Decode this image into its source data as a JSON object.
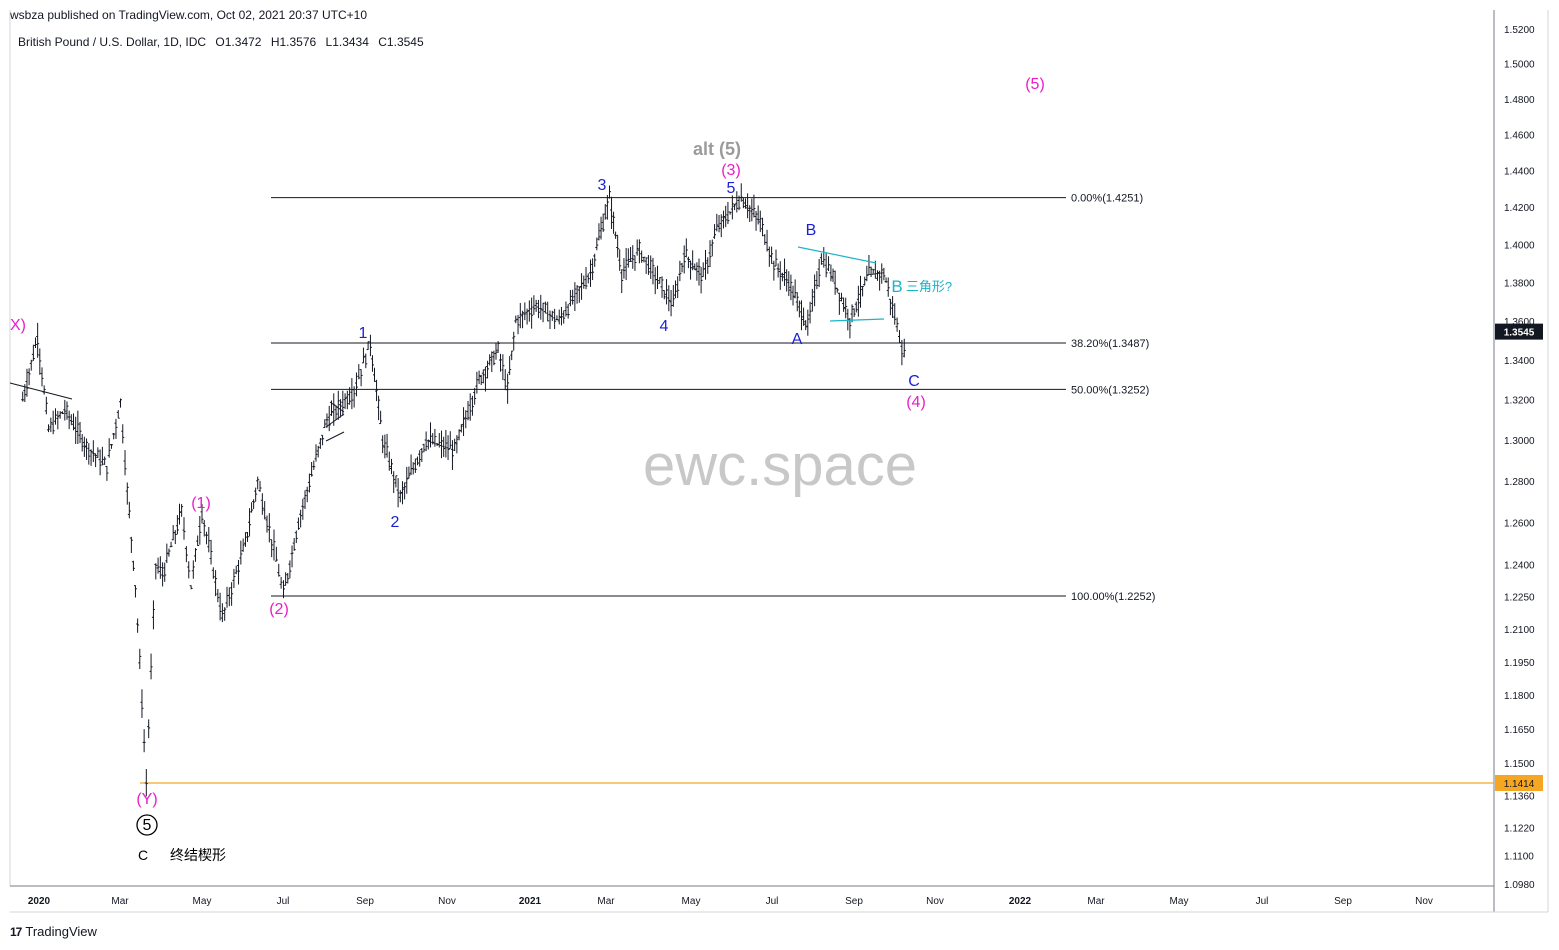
{
  "header": {
    "published": "wsbza published on TradingView.com, Oct 02, 2021 20:37 UTC+10",
    "symbol": "British Pound / U.S. Dollar, 1D, IDC",
    "open": "O1.3472",
    "high": "H1.3576",
    "low": "L1.3434",
    "close": "C1.3545"
  },
  "footer": {
    "brand": "TradingView",
    "logo_text": "17"
  },
  "watermark": "ewc.space",
  "chart_data": {
    "type": "ohlc",
    "title": "British Pound / U.S. Dollar, 1D, IDC",
    "y_axis": {
      "ticks": [
        "1.5200",
        "1.5000",
        "1.4800",
        "1.4600",
        "1.4400",
        "1.4200",
        "1.4000",
        "1.3800",
        "1.3600",
        "1.3400",
        "1.3200",
        "1.3000",
        "1.2800",
        "1.2600",
        "1.2400",
        "1.2250",
        "1.2100",
        "1.1950",
        "1.1800",
        "1.1650",
        "1.1500",
        "1.1360",
        "1.1220",
        "1.1100",
        "1.0980"
      ],
      "ylim": [
        1.098,
        1.52
      ],
      "scale": "log"
    },
    "x_axis": {
      "ticks": [
        "2020",
        "Mar",
        "May",
        "Jul",
        "Sep",
        "Nov",
        "2021",
        "Mar",
        "May",
        "Jul",
        "Sep",
        "Nov",
        "2022",
        "Mar",
        "May",
        "Jul",
        "Sep",
        "Nov"
      ],
      "bold_ticks": [
        "2020",
        "2021",
        "2022"
      ]
    },
    "price_badge": {
      "value": "1.3545",
      "color": "#131722"
    },
    "level_badge": {
      "value": "1.1414",
      "color": "#f5a623"
    },
    "fib_levels": [
      {
        "label": "0.00%(1.4251)",
        "value": 1.4251
      },
      {
        "label": "38.20%(1.3487)",
        "value": 1.3487
      },
      {
        "label": "50.00%(1.3252)",
        "value": 1.3252
      },
      {
        "label": "100.00%(1.2252)",
        "value": 1.2252
      }
    ],
    "horizontal_line": {
      "value": 1.1414,
      "color": "#f5a623"
    },
    "wave_labels": [
      {
        "text": "X)",
        "color": "#e91ec9"
      },
      {
        "text": "(1)",
        "color": "#e91ec9"
      },
      {
        "text": "(2)",
        "color": "#e91ec9"
      },
      {
        "text": "(Y)",
        "color": "#e91ec9"
      },
      {
        "text": "5",
        "color": "#000000",
        "circled": true
      },
      {
        "text": "C",
        "color": "#000000"
      },
      {
        "text": "终结楔形",
        "color": "#000000"
      },
      {
        "text": "1",
        "color": "#1a1fd6"
      },
      {
        "text": "2",
        "color": "#1a1fd6"
      },
      {
        "text": "3",
        "color": "#1a1fd6"
      },
      {
        "text": "4",
        "color": "#1a1fd6"
      },
      {
        "text": "5",
        "color": "#1a1fd6"
      },
      {
        "text": "alt (5)",
        "color": "#9b9b9b"
      },
      {
        "text": "(3)",
        "color": "#e91ec9"
      },
      {
        "text": "B",
        "color": "#1a1fd6"
      },
      {
        "text": "A",
        "color": "#1a1fd6"
      },
      {
        "text": "B",
        "color": "#1ab5c7"
      },
      {
        "text": "三角形?",
        "color": "#1ab5c7"
      },
      {
        "text": "C",
        "color": "#1a1fd6"
      },
      {
        "text": "(4)",
        "color": "#e91ec9"
      },
      {
        "text": "(5)",
        "color": "#e91ec9"
      }
    ],
    "path_anchors": [
      {
        "date": "2019-12-20",
        "price": 1.32
      },
      {
        "date": "2019-12-31",
        "price": 1.352
      },
      {
        "date": "2020-01-08",
        "price": 1.305
      },
      {
        "date": "2020-01-20",
        "price": 1.315
      },
      {
        "date": "2020-02-05",
        "price": 1.297
      },
      {
        "date": "2020-02-20",
        "price": 1.287
      },
      {
        "date": "2020-03-01",
        "price": 1.319
      },
      {
        "date": "2020-03-06",
        "price": 1.275
      },
      {
        "date": "2020-03-12",
        "price": 1.23
      },
      {
        "date": "2020-03-20",
        "price": 1.1414
      },
      {
        "date": "2020-03-27",
        "price": 1.24
      },
      {
        "date": "2020-04-01",
        "price": 1.235
      },
      {
        "date": "2020-04-15",
        "price": 1.265
      },
      {
        "date": "2020-04-22",
        "price": 1.23
      },
      {
        "date": "2020-04-30",
        "price": 1.265
      },
      {
        "date": "2020-05-15",
        "price": 1.215
      },
      {
        "date": "2020-06-01",
        "price": 1.25
      },
      {
        "date": "2020-06-10",
        "price": 1.28
      },
      {
        "date": "2020-06-22",
        "price": 1.247
      },
      {
        "date": "2020-06-29",
        "price": 1.2252
      },
      {
        "date": "2020-07-10",
        "price": 1.26
      },
      {
        "date": "2020-07-31",
        "price": 1.31
      },
      {
        "date": "2020-08-20",
        "price": 1.325
      },
      {
        "date": "2020-09-01",
        "price": 1.3487
      },
      {
        "date": "2020-09-10",
        "price": 1.3
      },
      {
        "date": "2020-09-23",
        "price": 1.272
      },
      {
        "date": "2020-10-12",
        "price": 1.3
      },
      {
        "date": "2020-11-02",
        "price": 1.295
      },
      {
        "date": "2020-11-20",
        "price": 1.33
      },
      {
        "date": "2020-12-04",
        "price": 1.345
      },
      {
        "date": "2020-12-11",
        "price": 1.325
      },
      {
        "date": "2020-12-17",
        "price": 1.36
      },
      {
        "date": "2021-01-01",
        "price": 1.368
      },
      {
        "date": "2021-01-18",
        "price": 1.36
      },
      {
        "date": "2021-02-10",
        "price": 1.385
      },
      {
        "date": "2021-02-24",
        "price": 1.4251
      },
      {
        "date": "2021-03-05",
        "price": 1.385
      },
      {
        "date": "2021-03-18",
        "price": 1.397
      },
      {
        "date": "2021-04-12",
        "price": 1.368
      },
      {
        "date": "2021-04-20",
        "price": 1.395
      },
      {
        "date": "2021-05-04",
        "price": 1.383
      },
      {
        "date": "2021-05-14",
        "price": 1.408
      },
      {
        "date": "2021-06-01",
        "price": 1.4251
      },
      {
        "date": "2021-06-15",
        "price": 1.412
      },
      {
        "date": "2021-06-25",
        "price": 1.39
      },
      {
        "date": "2021-07-06",
        "price": 1.38
      },
      {
        "date": "2021-07-20",
        "price": 1.357
      },
      {
        "date": "2021-07-30",
        "price": 1.393
      },
      {
        "date": "2021-08-06",
        "price": 1.385
      },
      {
        "date": "2021-08-20",
        "price": 1.361
      },
      {
        "date": "2021-09-03",
        "price": 1.384
      },
      {
        "date": "2021-09-14",
        "price": 1.385
      },
      {
        "date": "2021-09-22",
        "price": 1.362
      },
      {
        "date": "2021-09-29",
        "price": 1.342
      },
      {
        "date": "2021-10-01",
        "price": 1.3545
      }
    ]
  }
}
